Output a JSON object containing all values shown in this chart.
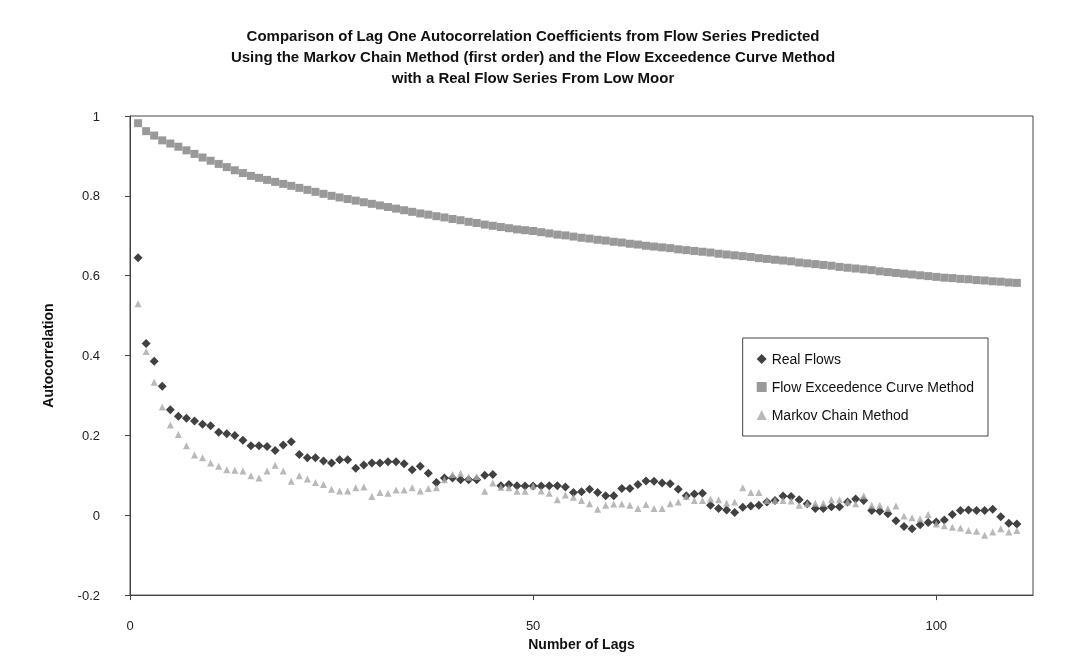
{
  "chart_data": {
    "type": "scatter",
    "title": "Comparison of Lag One Autocorrelation Coefficients from Flow Series Predicted\nUsing the Markov Chain Method (first order) and the Flow Exceedence Curve Method\nwith a Real Flow Series From Low Moor",
    "xlabel": "Number of Lags",
    "ylabel": "Autocorrelation",
    "x": [
      1,
      2,
      3,
      4,
      5,
      6,
      7,
      8,
      9,
      10,
      11,
      12,
      13,
      14,
      15,
      16,
      17,
      18,
      19,
      20,
      21,
      22,
      23,
      24,
      25,
      26,
      27,
      28,
      29,
      30,
      31,
      32,
      33,
      34,
      35,
      36,
      37,
      38,
      39,
      40,
      41,
      42,
      43,
      44,
      45,
      46,
      47,
      48,
      49,
      50,
      51,
      52,
      53,
      54,
      55,
      56,
      57,
      58,
      59,
      60,
      61,
      62,
      63,
      64,
      65,
      66,
      67,
      68,
      69,
      70,
      71,
      72,
      73,
      74,
      75,
      76,
      77,
      78,
      79,
      80,
      81,
      82,
      83,
      84,
      85,
      86,
      87,
      88,
      89,
      90,
      91,
      92,
      93,
      94,
      95,
      96,
      97,
      98,
      99,
      100,
      101,
      102,
      103,
      104,
      105,
      106,
      107,
      108,
      109,
      110
    ],
    "series": [
      {
        "name": "Real Flows",
        "color": "#111111",
        "marker": "diamond",
        "values": [
          0.645,
          0.43,
          0.386,
          0.323,
          0.264,
          0.248,
          0.243,
          0.236,
          0.228,
          0.224,
          0.208,
          0.204,
          0.2,
          0.188,
          0.174,
          0.174,
          0.172,
          0.162,
          0.176,
          0.184,
          0.152,
          0.144,
          0.144,
          0.136,
          0.131,
          0.139,
          0.139,
          0.118,
          0.126,
          0.131,
          0.131,
          0.134,
          0.134,
          0.129,
          0.114,
          0.123,
          0.105,
          0.082,
          0.093,
          0.093,
          0.089,
          0.089,
          0.089,
          0.1,
          0.102,
          0.074,
          0.077,
          0.074,
          0.073,
          0.073,
          0.073,
          0.074,
          0.074,
          0.071,
          0.057,
          0.059,
          0.065,
          0.057,
          0.049,
          0.049,
          0.067,
          0.067,
          0.077,
          0.086,
          0.085,
          0.081,
          0.079,
          0.065,
          0.049,
          0.053,
          0.055,
          0.025,
          0.017,
          0.013,
          0.007,
          0.02,
          0.023,
          0.025,
          0.033,
          0.037,
          0.048,
          0.047,
          0.039,
          0.029,
          0.017,
          0.017,
          0.021,
          0.021,
          0.033,
          0.041,
          0.037,
          0.012,
          0.01,
          0.004,
          -0.014,
          -0.028,
          -0.034,
          -0.024,
          -0.018,
          -0.017,
          -0.012,
          0.002,
          0.012,
          0.013,
          0.012,
          0.012,
          0.015,
          -0.004,
          -0.02,
          -0.022
        ]
      },
      {
        "name": "Flow Exceedence Curve Method",
        "color": "#808080",
        "marker": "square",
        "values": [
          0.982,
          0.962,
          0.951,
          0.939,
          0.931,
          0.923,
          0.914,
          0.905,
          0.896,
          0.888,
          0.88,
          0.872,
          0.864,
          0.857,
          0.85,
          0.845,
          0.84,
          0.835,
          0.83,
          0.825,
          0.82,
          0.815,
          0.81,
          0.805,
          0.8,
          0.796,
          0.792,
          0.788,
          0.784,
          0.78,
          0.776,
          0.772,
          0.768,
          0.764,
          0.76,
          0.756,
          0.753,
          0.749,
          0.746,
          0.742,
          0.739,
          0.735,
          0.732,
          0.728,
          0.725,
          0.722,
          0.719,
          0.716,
          0.714,
          0.712,
          0.709,
          0.706,
          0.703,
          0.701,
          0.698,
          0.695,
          0.693,
          0.69,
          0.688,
          0.685,
          0.683,
          0.68,
          0.678,
          0.675,
          0.673,
          0.671,
          0.669,
          0.666,
          0.664,
          0.662,
          0.66,
          0.658,
          0.655,
          0.653,
          0.651,
          0.649,
          0.647,
          0.644,
          0.642,
          0.64,
          0.638,
          0.636,
          0.633,
          0.631,
          0.629,
          0.627,
          0.625,
          0.622,
          0.62,
          0.618,
          0.616,
          0.614,
          0.611,
          0.609,
          0.607,
          0.605,
          0.603,
          0.601,
          0.599,
          0.597,
          0.595,
          0.594,
          0.592,
          0.591,
          0.589,
          0.588,
          0.586,
          0.585,
          0.583,
          0.582
        ]
      },
      {
        "name": "Markov Chain Method",
        "color": "#a8a8a8",
        "marker": "triangle",
        "values": [
          0.53,
          0.41,
          0.333,
          0.271,
          0.226,
          0.202,
          0.174,
          0.151,
          0.144,
          0.131,
          0.123,
          0.114,
          0.113,
          0.111,
          0.099,
          0.093,
          0.111,
          0.125,
          0.111,
          0.085,
          0.099,
          0.091,
          0.082,
          0.077,
          0.065,
          0.061,
          0.061,
          0.069,
          0.071,
          0.047,
          0.057,
          0.055,
          0.063,
          0.063,
          0.069,
          0.061,
          0.067,
          0.069,
          0.089,
          0.102,
          0.105,
          0.095,
          0.097,
          0.06,
          0.081,
          0.07,
          0.069,
          0.06,
          0.06,
          0.073,
          0.061,
          0.055,
          0.039,
          0.051,
          0.045,
          0.037,
          0.029,
          0.015,
          0.025,
          0.028,
          0.028,
          0.025,
          0.017,
          0.027,
          0.017,
          0.017,
          0.029,
          0.033,
          0.047,
          0.037,
          0.037,
          0.041,
          0.039,
          0.03,
          0.033,
          0.069,
          0.057,
          0.057,
          0.037,
          0.037,
          0.037,
          0.036,
          0.025,
          0.029,
          0.03,
          0.03,
          0.039,
          0.039,
          0.033,
          0.029,
          0.049,
          0.025,
          0.025,
          0.017,
          0.023,
          -0.002,
          -0.006,
          -0.009,
          0.002,
          -0.022,
          -0.026,
          -0.03,
          -0.032,
          -0.038,
          -0.04,
          -0.05,
          -0.042,
          -0.034,
          -0.042,
          -0.038
        ]
      }
    ],
    "xlim": [
      0,
      112
    ],
    "xticks": [
      0,
      50,
      100
    ],
    "ylim": [
      -0.2,
      1
    ],
    "yticks": [
      -0.2,
      0,
      0.2,
      0.4,
      0.6,
      0.8,
      1
    ],
    "grid": false,
    "legend": "right"
  }
}
